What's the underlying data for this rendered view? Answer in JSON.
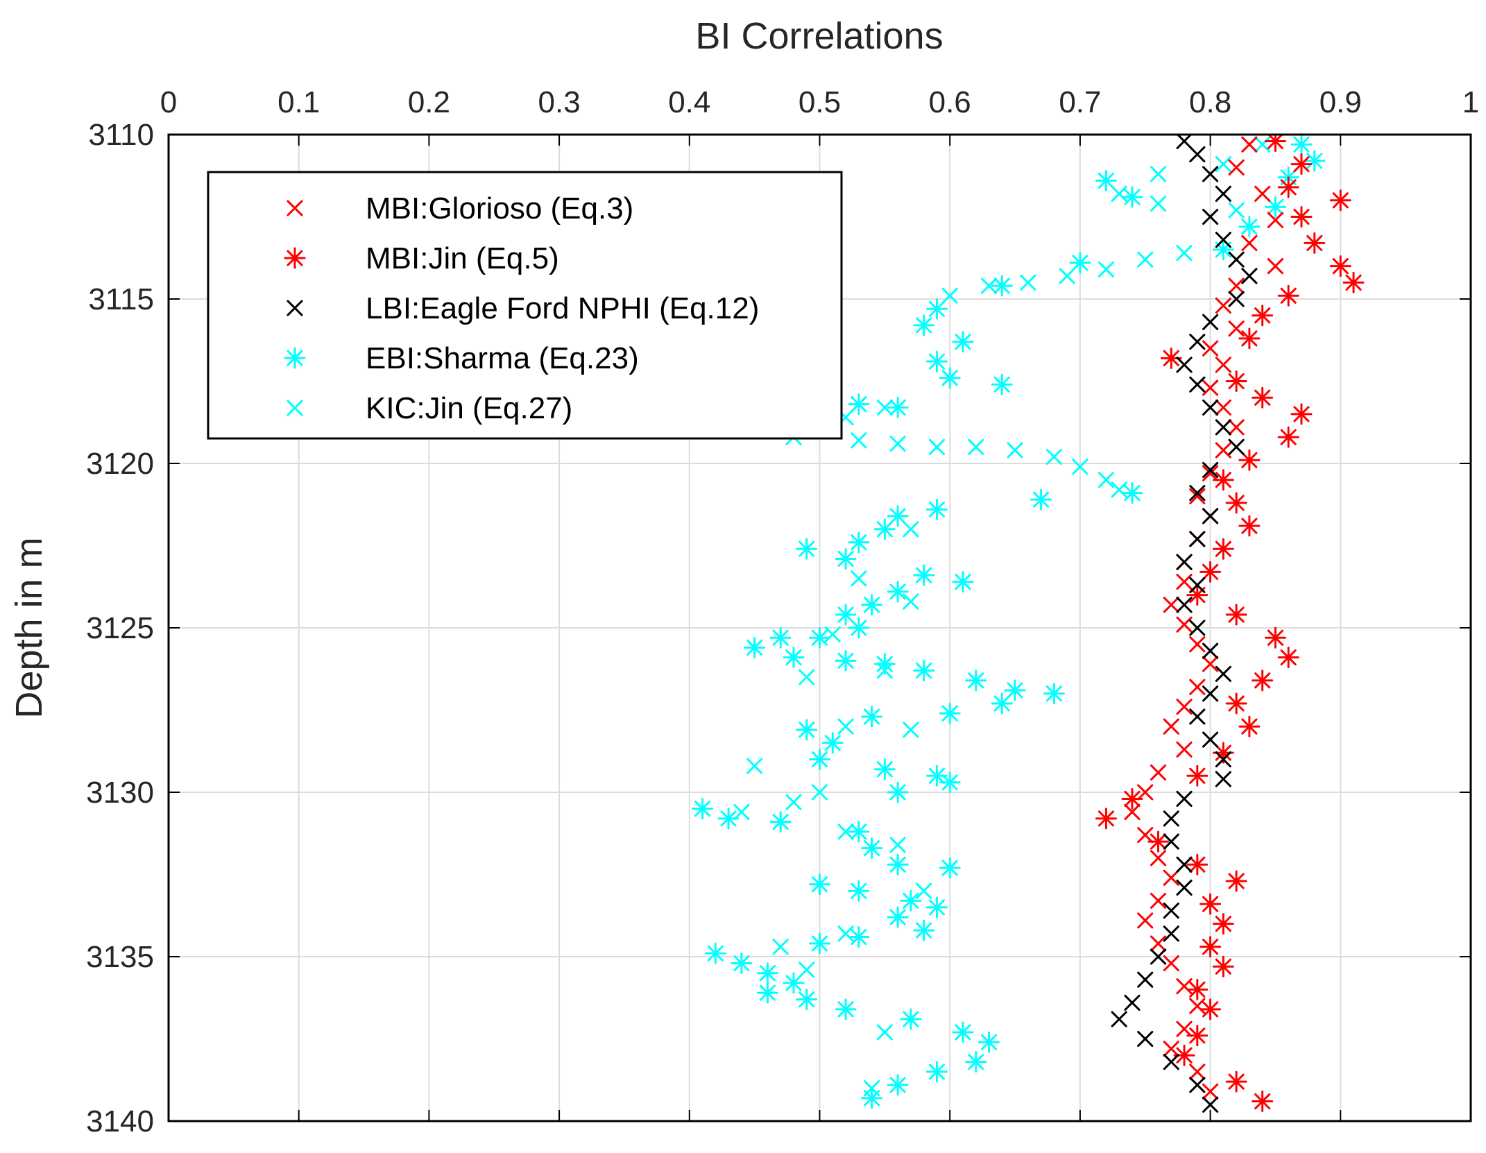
{
  "chart_data": {
    "type": "scatter",
    "title": "",
    "xlabel": "BI Correlations",
    "ylabel": "Depth in m",
    "xlim": [
      0,
      1
    ],
    "ylim": [
      3110,
      3140
    ],
    "y_reversed": true,
    "x_axis_location": "top",
    "grid": true,
    "legend_position": "top-left",
    "xticks": [
      "0",
      "0.1",
      "0.2",
      "0.3",
      "0.4",
      "0.5",
      "0.6",
      "0.7",
      "0.8",
      "0.9",
      "1"
    ],
    "yticks": [
      "3110",
      "3115",
      "3120",
      "3125",
      "3130",
      "3135",
      "3140"
    ],
    "series": [
      {
        "name": "MBI:Glorioso (Eq.3)",
        "marker": "x",
        "color": "#ff0000",
        "points": [
          [
            0.83,
            3110.3
          ],
          [
            0.82,
            3111.0
          ],
          [
            0.84,
            3111.8
          ],
          [
            0.85,
            3112.6
          ],
          [
            0.83,
            3113.3
          ],
          [
            0.85,
            3114.0
          ],
          [
            0.82,
            3114.6
          ],
          [
            0.81,
            3115.2
          ],
          [
            0.82,
            3115.9
          ],
          [
            0.8,
            3116.5
          ],
          [
            0.81,
            3117.0
          ],
          [
            0.8,
            3117.7
          ],
          [
            0.81,
            3118.3
          ],
          [
            0.82,
            3118.9
          ],
          [
            0.81,
            3119.6
          ],
          [
            0.8,
            3120.3
          ],
          [
            0.79,
            3121.0
          ],
          [
            0.8,
            3121.6
          ],
          [
            0.79,
            3122.3
          ],
          [
            0.78,
            3123.0
          ],
          [
            0.78,
            3123.6
          ],
          [
            0.77,
            3124.3
          ],
          [
            0.78,
            3124.9
          ],
          [
            0.79,
            3125.5
          ],
          [
            0.8,
            3126.1
          ],
          [
            0.79,
            3126.8
          ],
          [
            0.78,
            3127.4
          ],
          [
            0.77,
            3128.0
          ],
          [
            0.78,
            3128.7
          ],
          [
            0.76,
            3129.4
          ],
          [
            0.75,
            3130.0
          ],
          [
            0.74,
            3130.6
          ],
          [
            0.75,
            3131.3
          ],
          [
            0.76,
            3132.0
          ],
          [
            0.77,
            3132.6
          ],
          [
            0.76,
            3133.3
          ],
          [
            0.75,
            3133.9
          ],
          [
            0.76,
            3134.6
          ],
          [
            0.77,
            3135.2
          ],
          [
            0.78,
            3135.9
          ],
          [
            0.79,
            3136.5
          ],
          [
            0.78,
            3137.2
          ],
          [
            0.77,
            3137.8
          ],
          [
            0.79,
            3138.5
          ],
          [
            0.8,
            3139.1
          ]
        ]
      },
      {
        "name": "MBI:Jin (Eq.5)",
        "marker": "*",
        "color": "#ff0000",
        "points": [
          [
            0.85,
            3110.2
          ],
          [
            0.87,
            3110.9
          ],
          [
            0.86,
            3111.6
          ],
          [
            0.9,
            3112.0
          ],
          [
            0.87,
            3112.5
          ],
          [
            0.88,
            3113.3
          ],
          [
            0.9,
            3114.0
          ],
          [
            0.91,
            3114.5
          ],
          [
            0.86,
            3114.9
          ],
          [
            0.84,
            3115.5
          ],
          [
            0.83,
            3116.2
          ],
          [
            0.77,
            3116.8
          ],
          [
            0.82,
            3117.5
          ],
          [
            0.84,
            3118.0
          ],
          [
            0.87,
            3118.5
          ],
          [
            0.86,
            3119.2
          ],
          [
            0.83,
            3119.9
          ],
          [
            0.81,
            3120.5
          ],
          [
            0.82,
            3121.2
          ],
          [
            0.83,
            3121.9
          ],
          [
            0.81,
            3122.6
          ],
          [
            0.8,
            3123.3
          ],
          [
            0.79,
            3124.0
          ],
          [
            0.82,
            3124.6
          ],
          [
            0.85,
            3125.3
          ],
          [
            0.86,
            3125.9
          ],
          [
            0.84,
            3126.6
          ],
          [
            0.82,
            3127.3
          ],
          [
            0.83,
            3128.0
          ],
          [
            0.81,
            3128.8
          ],
          [
            0.79,
            3129.5
          ],
          [
            0.74,
            3130.2
          ],
          [
            0.72,
            3130.8
          ],
          [
            0.76,
            3131.5
          ],
          [
            0.79,
            3132.2
          ],
          [
            0.82,
            3132.7
          ],
          [
            0.8,
            3133.4
          ],
          [
            0.81,
            3134.0
          ],
          [
            0.8,
            3134.7
          ],
          [
            0.81,
            3135.3
          ],
          [
            0.79,
            3136.0
          ],
          [
            0.8,
            3136.6
          ],
          [
            0.79,
            3137.4
          ],
          [
            0.78,
            3138.0
          ],
          [
            0.82,
            3138.8
          ],
          [
            0.84,
            3139.4
          ]
        ]
      },
      {
        "name": "LBI:Eagle Ford NPHI (Eq.12)",
        "marker": "x",
        "color": "#000000",
        "points": [
          [
            0.78,
            3110.2
          ],
          [
            0.79,
            3110.6
          ],
          [
            0.8,
            3111.2
          ],
          [
            0.81,
            3111.8
          ],
          [
            0.8,
            3112.5
          ],
          [
            0.81,
            3113.2
          ],
          [
            0.82,
            3113.8
          ],
          [
            0.83,
            3114.3
          ],
          [
            0.82,
            3115.0
          ],
          [
            0.8,
            3115.7
          ],
          [
            0.79,
            3116.3
          ],
          [
            0.78,
            3117.0
          ],
          [
            0.79,
            3117.6
          ],
          [
            0.8,
            3118.3
          ],
          [
            0.81,
            3118.9
          ],
          [
            0.82,
            3119.5
          ],
          [
            0.8,
            3120.2
          ],
          [
            0.79,
            3120.9
          ],
          [
            0.8,
            3121.6
          ],
          [
            0.79,
            3122.3
          ],
          [
            0.78,
            3123.0
          ],
          [
            0.79,
            3123.7
          ],
          [
            0.78,
            3124.3
          ],
          [
            0.79,
            3125.0
          ],
          [
            0.8,
            3125.7
          ],
          [
            0.81,
            3126.4
          ],
          [
            0.8,
            3127.0
          ],
          [
            0.79,
            3127.7
          ],
          [
            0.8,
            3128.4
          ],
          [
            0.81,
            3129.0
          ],
          [
            0.81,
            3129.6
          ],
          [
            0.78,
            3130.2
          ],
          [
            0.77,
            3130.8
          ],
          [
            0.77,
            3131.5
          ],
          [
            0.78,
            3132.2
          ],
          [
            0.78,
            3132.9
          ],
          [
            0.77,
            3133.6
          ],
          [
            0.77,
            3134.3
          ],
          [
            0.76,
            3135.0
          ],
          [
            0.75,
            3135.7
          ],
          [
            0.74,
            3136.4
          ],
          [
            0.73,
            3136.9
          ],
          [
            0.75,
            3137.5
          ],
          [
            0.77,
            3138.2
          ],
          [
            0.79,
            3138.9
          ],
          [
            0.8,
            3139.5
          ]
        ]
      },
      {
        "name": "EBI:Sharma (Eq.23)",
        "marker": "*",
        "color": "#00ffff",
        "points": [
          [
            0.87,
            3110.3
          ],
          [
            0.88,
            3110.8
          ],
          [
            0.86,
            3111.3
          ],
          [
            0.72,
            3111.4
          ],
          [
            0.74,
            3111.9
          ],
          [
            0.85,
            3112.2
          ],
          [
            0.83,
            3112.8
          ],
          [
            0.81,
            3113.5
          ],
          [
            0.7,
            3113.9
          ],
          [
            0.64,
            3114.6
          ],
          [
            0.59,
            3115.3
          ],
          [
            0.58,
            3115.8
          ],
          [
            0.61,
            3116.3
          ],
          [
            0.59,
            3116.9
          ],
          [
            0.6,
            3117.4
          ],
          [
            0.64,
            3117.6
          ],
          [
            0.56,
            3118.3
          ],
          [
            0.53,
            3118.2
          ],
          [
            0.74,
            3120.9
          ],
          [
            0.67,
            3121.1
          ],
          [
            0.59,
            3121.4
          ],
          [
            0.56,
            3121.6
          ],
          [
            0.55,
            3122.0
          ],
          [
            0.53,
            3122.4
          ],
          [
            0.49,
            3122.6
          ],
          [
            0.52,
            3122.9
          ],
          [
            0.58,
            3123.4
          ],
          [
            0.61,
            3123.6
          ],
          [
            0.56,
            3123.9
          ],
          [
            0.54,
            3124.3
          ],
          [
            0.52,
            3124.6
          ],
          [
            0.53,
            3125.0
          ],
          [
            0.5,
            3125.3
          ],
          [
            0.47,
            3125.3
          ],
          [
            0.45,
            3125.6
          ],
          [
            0.48,
            3125.9
          ],
          [
            0.52,
            3126.0
          ],
          [
            0.55,
            3126.1
          ],
          [
            0.58,
            3126.3
          ],
          [
            0.62,
            3126.6
          ],
          [
            0.65,
            3126.9
          ],
          [
            0.68,
            3127.0
          ],
          [
            0.64,
            3127.3
          ],
          [
            0.6,
            3127.6
          ],
          [
            0.54,
            3127.7
          ],
          [
            0.49,
            3128.1
          ],
          [
            0.51,
            3128.5
          ],
          [
            0.5,
            3129.0
          ],
          [
            0.55,
            3129.3
          ],
          [
            0.59,
            3129.5
          ],
          [
            0.6,
            3129.7
          ],
          [
            0.56,
            3130.0
          ],
          [
            0.41,
            3130.5
          ],
          [
            0.43,
            3130.8
          ],
          [
            0.47,
            3130.9
          ],
          [
            0.53,
            3131.2
          ],
          [
            0.54,
            3131.7
          ],
          [
            0.56,
            3132.2
          ],
          [
            0.6,
            3132.3
          ],
          [
            0.5,
            3132.8
          ],
          [
            0.53,
            3133.0
          ],
          [
            0.57,
            3133.3
          ],
          [
            0.59,
            3133.5
          ],
          [
            0.56,
            3133.8
          ],
          [
            0.58,
            3134.2
          ],
          [
            0.53,
            3134.4
          ],
          [
            0.5,
            3134.6
          ],
          [
            0.42,
            3134.9
          ],
          [
            0.44,
            3135.2
          ],
          [
            0.46,
            3135.5
          ],
          [
            0.48,
            3135.8
          ],
          [
            0.46,
            3136.1
          ],
          [
            0.49,
            3136.3
          ],
          [
            0.52,
            3136.6
          ],
          [
            0.57,
            3136.9
          ],
          [
            0.61,
            3137.3
          ],
          [
            0.63,
            3137.6
          ],
          [
            0.62,
            3138.2
          ],
          [
            0.59,
            3138.5
          ],
          [
            0.56,
            3138.9
          ],
          [
            0.54,
            3139.3
          ]
        ]
      },
      {
        "name": "KIC:Jin (Eq.27)",
        "marker": "x",
        "color": "#00ffff",
        "points": [
          [
            0.84,
            3110.3
          ],
          [
            0.81,
            3110.9
          ],
          [
            0.76,
            3111.2
          ],
          [
            0.73,
            3111.8
          ],
          [
            0.76,
            3112.1
          ],
          [
            0.82,
            3112.3
          ],
          [
            0.78,
            3113.6
          ],
          [
            0.75,
            3113.8
          ],
          [
            0.72,
            3114.1
          ],
          [
            0.69,
            3114.3
          ],
          [
            0.66,
            3114.5
          ],
          [
            0.63,
            3114.6
          ],
          [
            0.6,
            3114.9
          ],
          [
            0.55,
            3118.3
          ],
          [
            0.52,
            3118.6
          ],
          [
            0.5,
            3119.0
          ],
          [
            0.48,
            3119.2
          ],
          [
            0.53,
            3119.3
          ],
          [
            0.56,
            3119.4
          ],
          [
            0.59,
            3119.5
          ],
          [
            0.62,
            3119.5
          ],
          [
            0.65,
            3119.6
          ],
          [
            0.68,
            3119.8
          ],
          [
            0.7,
            3120.1
          ],
          [
            0.72,
            3120.5
          ],
          [
            0.73,
            3120.8
          ],
          [
            0.57,
            3122.0
          ],
          [
            0.53,
            3123.5
          ],
          [
            0.57,
            3124.2
          ],
          [
            0.51,
            3125.2
          ],
          [
            0.55,
            3126.3
          ],
          [
            0.49,
            3126.5
          ],
          [
            0.52,
            3128.0
          ],
          [
            0.57,
            3128.1
          ],
          [
            0.45,
            3129.2
          ],
          [
            0.48,
            3130.3
          ],
          [
            0.5,
            3130.0
          ],
          [
            0.44,
            3130.6
          ],
          [
            0.52,
            3131.2
          ],
          [
            0.56,
            3131.6
          ],
          [
            0.58,
            3133.0
          ],
          [
            0.52,
            3134.3
          ],
          [
            0.47,
            3134.7
          ],
          [
            0.49,
            3135.4
          ],
          [
            0.55,
            3137.3
          ],
          [
            0.54,
            3139.0
          ]
        ]
      }
    ]
  }
}
